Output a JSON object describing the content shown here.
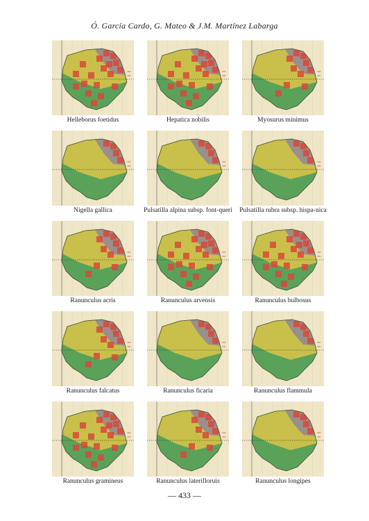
{
  "header": {
    "authors": "Ó. García Cardo, G. Mateo & J.M. Martínez Labarga"
  },
  "maps": [
    {
      "caption": "Helleborus foetidus",
      "presence": "high"
    },
    {
      "caption": "Hepatica nobilis",
      "presence": "high"
    },
    {
      "caption": "Myosurus minimus",
      "presence": "mid"
    },
    {
      "caption": "Nigella gallica",
      "presence": "low"
    },
    {
      "caption": "Pulsatilla alpina subsp. font-queri",
      "presence": "low"
    },
    {
      "caption": "Pulsatilla rubra subsp. hispa-nica",
      "presence": "low"
    },
    {
      "caption": "Ranunculus acris",
      "presence": "mid"
    },
    {
      "caption": "Ranunculus arvensis",
      "presence": "high"
    },
    {
      "caption": "Ranunculus bulbosus",
      "presence": "high"
    },
    {
      "caption": "Ranunculus falcatus",
      "presence": "mid"
    },
    {
      "caption": "Ranunculus ficaria",
      "presence": "low"
    },
    {
      "caption": "Ranunculus flammula",
      "presence": "low"
    },
    {
      "caption": "Ranunculus gramineus",
      "presence": "high"
    },
    {
      "caption": "Ranunculus laterifloruis",
      "presence": "mid"
    },
    {
      "caption": "Ranunculus longipes",
      "presence": "low"
    }
  ],
  "map_labels": {
    "grid_left": "30T",
    "grid_right": "30S"
  },
  "colors": {
    "high_elev": "#9a8f8a",
    "mid_elev": "#c8c04a",
    "low_elev": "#5aa25a",
    "presence": "#d9483a",
    "outer": "#efe6c7"
  },
  "footer": {
    "page": "— 433 —"
  }
}
